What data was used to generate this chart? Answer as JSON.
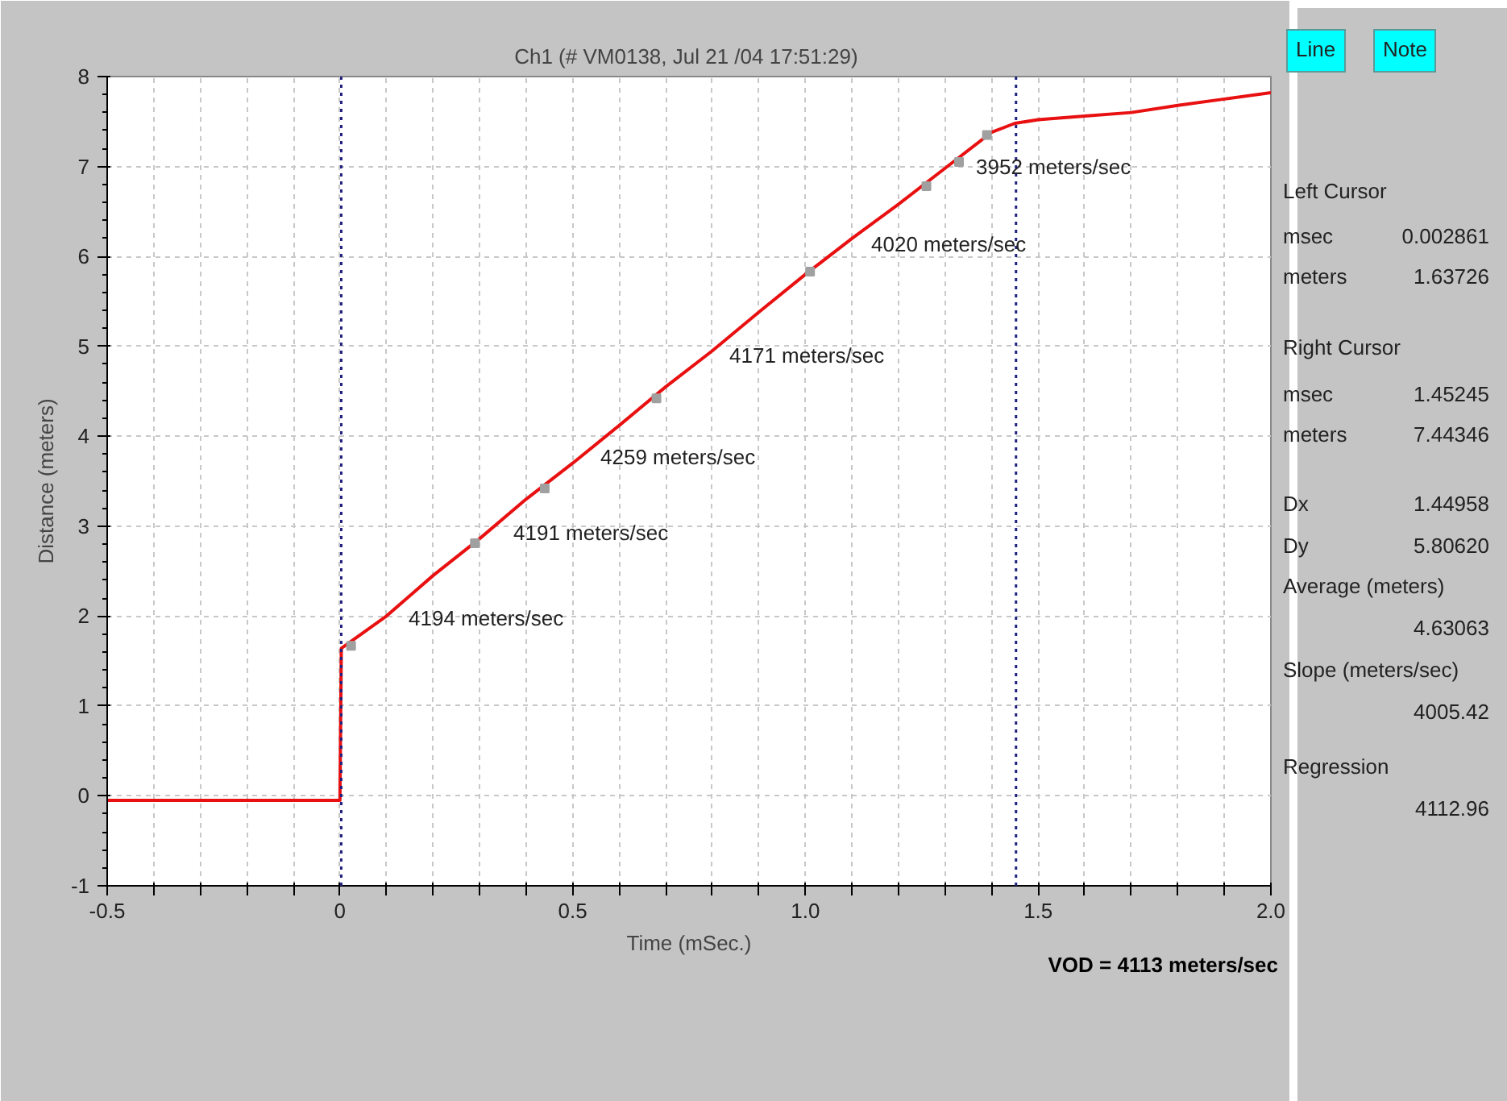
{
  "chart_data": {
    "type": "line",
    "title": "Ch1  (# VM0138, Jul 21 /04 17:51:29)",
    "xlabel": "Time (mSec.)",
    "ylabel": "Distance (meters)",
    "xlim": [
      -0.5,
      2.0
    ],
    "ylim": [
      -1,
      8
    ],
    "xticks": [
      "-0.5",
      {
        "value": -0.4,
        "label": null
      },
      {
        "value": -0.3,
        "label": null
      },
      {
        "value": -0.2,
        "label": null
      },
      {
        "value": -0.1,
        "label": null
      },
      0,
      {
        "value": 0.1,
        "label": null
      },
      {
        "value": 0.2,
        "label": null
      },
      {
        "value": 0.3,
        "label": null
      },
      {
        "value": 0.4,
        "label": null
      },
      0.5,
      {
        "value": 0.6,
        "label": null
      },
      {
        "value": 0.7,
        "label": null
      },
      {
        "value": 0.8,
        "label": null
      },
      {
        "value": 0.9,
        "label": null
      },
      {
        "value": 1.0,
        "label": "1.0"
      },
      {
        "value": 1.1,
        "label": null
      },
      {
        "value": 1.2,
        "label": null
      },
      {
        "value": 1.3,
        "label": null
      },
      {
        "value": 1.4,
        "label": null
      },
      1.5,
      {
        "value": 1.6,
        "label": null
      },
      {
        "value": 1.7,
        "label": null
      },
      {
        "value": 1.8,
        "label": null
      },
      {
        "value": 1.9,
        "label": null
      },
      {
        "value": 2.0,
        "label": "2.0"
      }
    ],
    "yticks": [
      -1,
      0,
      1,
      2,
      3,
      4,
      5,
      6,
      7,
      8
    ],
    "grid": true,
    "marker": "none",
    "line_style": "solid",
    "series": [
      {
        "color": "#e81010",
        "x": [
          -0.5,
          0,
          0.003,
          0.1,
          0.2,
          0.3,
          0.4,
          0.5,
          0.6,
          0.7,
          0.8,
          0.9,
          1.0,
          1.1,
          1.2,
          1.3,
          1.4,
          1.45,
          1.5,
          1.6,
          1.7,
          1.8,
          1.9,
          2.0
        ],
        "values": [
          -0.05,
          -0.05,
          1.64,
          2.0,
          2.45,
          2.86,
          3.3,
          3.7,
          4.12,
          4.55,
          4.95,
          5.38,
          5.8,
          6.2,
          6.58,
          6.98,
          7.38,
          7.48,
          7.52,
          7.56,
          7.6,
          7.68,
          7.75,
          7.82
        ]
      },
      {
        "type": "scatter",
        "marker": "square",
        "color": "#a0a0a0",
        "x": [
          0.024,
          0.29,
          0.44,
          0.68,
          1.01,
          1.26,
          1.33,
          1.39
        ],
        "values": [
          1.67,
          2.81,
          3.42,
          4.42,
          5.83,
          6.78,
          7.05,
          7.35
        ]
      }
    ],
    "ref_lines": [
      {
        "axis": "x",
        "value": 0.002861,
        "color": "#202080",
        "line_style": "dotted"
      },
      {
        "axis": "x",
        "value": 1.45245,
        "color": "#202080",
        "line_style": "dotted"
      }
    ],
    "annotations": [
      "4194 meters/sec",
      "4191 meters/sec",
      "4259 meters/sec",
      "4171 meters/sec",
      "4020 meters/sec",
      "3952 meters/sec",
      "Line",
      "Note",
      "Left Cursor",
      "msec",
      "0.002861",
      "meters",
      "1.63726",
      "Right Cursor",
      "msec",
      "1.45245",
      "meters",
      "7.44346",
      "Dx",
      "1.44958",
      "Dy",
      "5.80620",
      "Average (meters)",
      "4.63063",
      "Slope (meters/sec)",
      "4005.42",
      "Regression",
      "4112.96",
      "VOD = 4113 meters/sec"
    ]
  }
}
